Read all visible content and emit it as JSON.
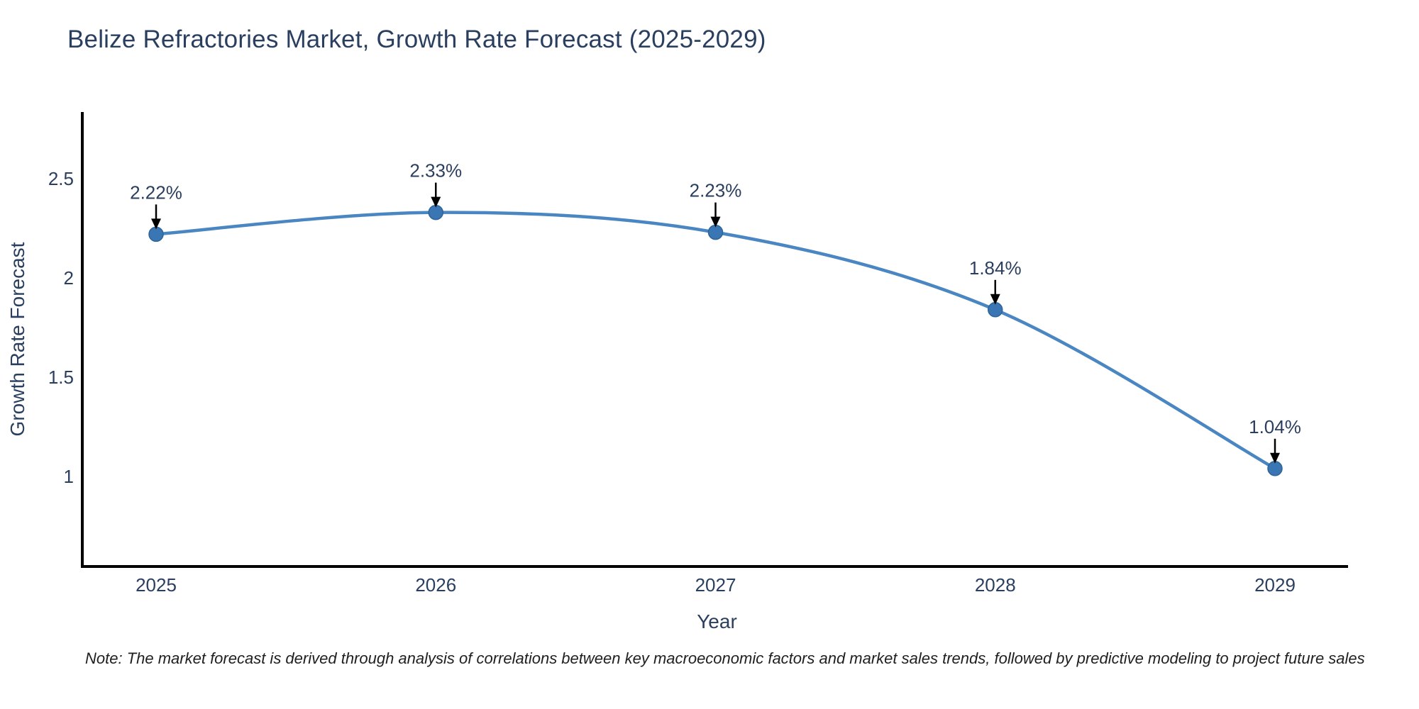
{
  "title": "Belize Refractories Market, Growth Rate Forecast (2025-2029)",
  "note": "Note: The market forecast is derived through analysis of correlations between key macroeconomic factors and market sales trends, followed by predictive modeling to project future sales",
  "colors": {
    "line": "#4a86c2",
    "marker": "#3a76b4",
    "marker_edge": "#2f6496",
    "text": "#2a3f5f",
    "axis": "#000000",
    "arrow": "#000000",
    "note_text": "#1f1f1f"
  },
  "chart_data": {
    "type": "line",
    "title": "Belize Refractories Market, Growth Rate Forecast (2025-2029)",
    "xlabel": "Year",
    "ylabel": "Growth Rate Forecast",
    "x": [
      2025,
      2026,
      2027,
      2028,
      2029
    ],
    "y": [
      2.22,
      2.33,
      2.23,
      1.84,
      1.04
    ],
    "point_labels": [
      "2.22%",
      "2.33%",
      "2.23%",
      "1.84%",
      "1.04%"
    ],
    "xtick_labels": [
      "2025",
      "2026",
      "2027",
      "2028",
      "2029"
    ],
    "ytick_values": [
      1,
      1.5,
      2,
      2.5
    ],
    "ytick_labels": [
      "1",
      "1.5",
      "2",
      "2.5"
    ],
    "ylim": [
      0.55,
      2.84
    ],
    "line_shape": "spline",
    "grid": false,
    "legend": null,
    "annotations_style": "value labels above points with downward black arrows"
  }
}
